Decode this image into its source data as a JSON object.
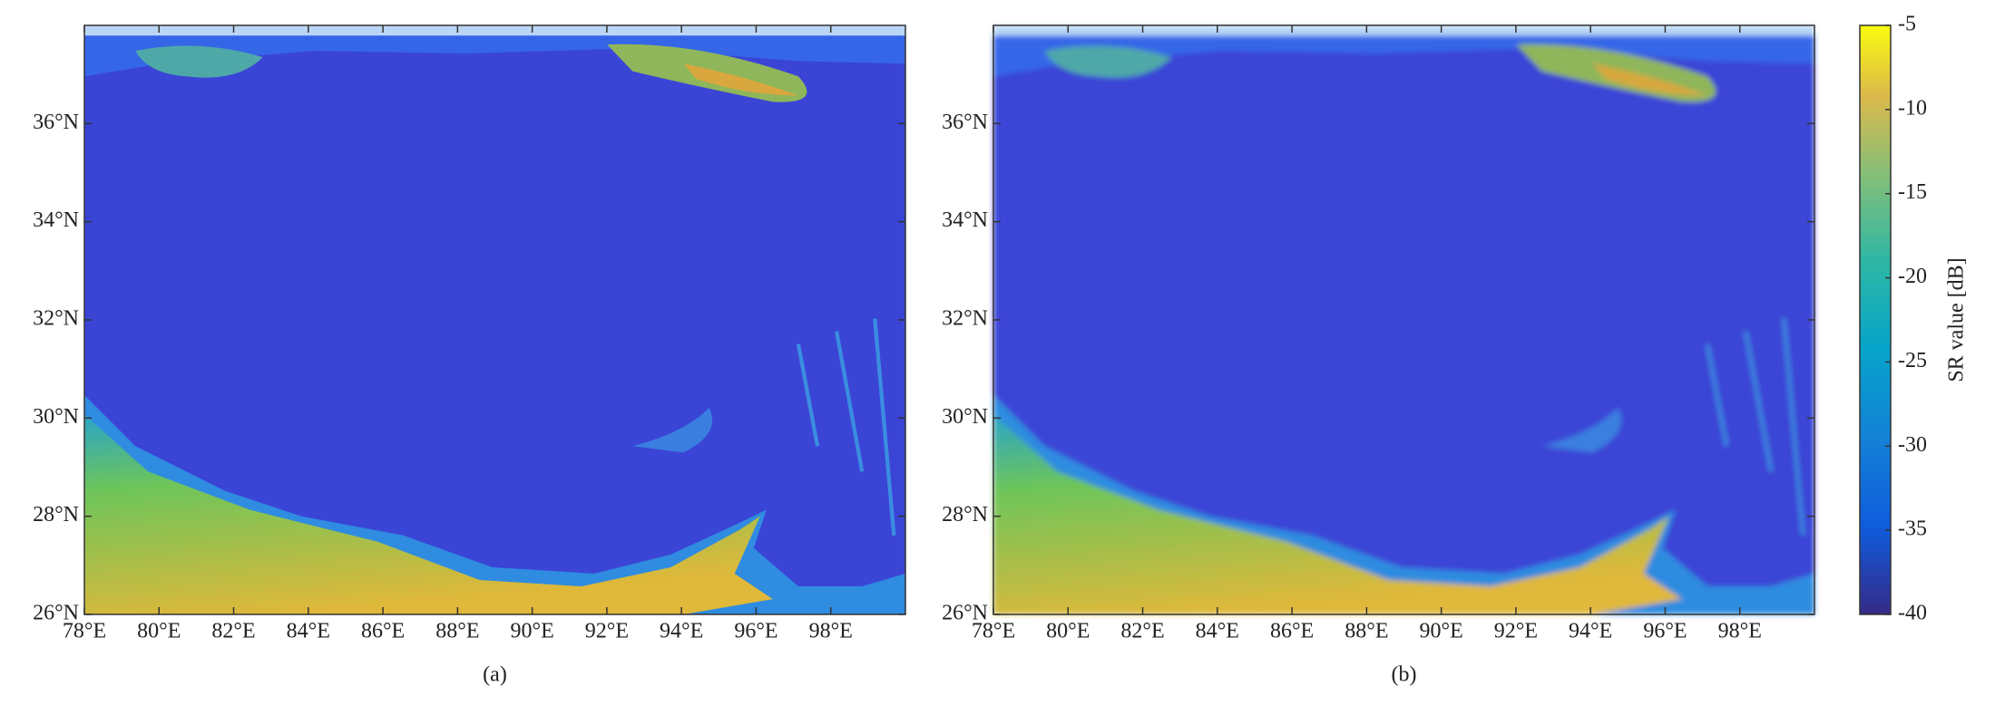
{
  "panels": [
    {
      "caption": "(a)"
    },
    {
      "caption": "(b)"
    }
  ],
  "xlim": [
    78,
    100
  ],
  "ylim": [
    26,
    38
  ],
  "xticks": [
    {
      "value": 78,
      "label": "78°E"
    },
    {
      "value": 80,
      "label": "80°E"
    },
    {
      "value": 82,
      "label": "82°E"
    },
    {
      "value": 84,
      "label": "84°E"
    },
    {
      "value": 86,
      "label": "86°E"
    },
    {
      "value": 88,
      "label": "88°E"
    },
    {
      "value": 90,
      "label": "90°E"
    },
    {
      "value": 92,
      "label": "92°E"
    },
    {
      "value": 94,
      "label": "94°E"
    },
    {
      "value": 96,
      "label": "96°E"
    },
    {
      "value": 98,
      "label": "98°E"
    }
  ],
  "yticks": [
    {
      "value": 26,
      "label": "26°N"
    },
    {
      "value": 28,
      "label": "28°N"
    },
    {
      "value": 30,
      "label": "30°N"
    },
    {
      "value": 32,
      "label": "32°N"
    },
    {
      "value": 34,
      "label": "34°N"
    },
    {
      "value": 36,
      "label": "36°N"
    }
  ],
  "colorbar": {
    "label": "SR value [dB]",
    "lim": [
      -40,
      -5
    ],
    "ticks": [
      -40,
      -35,
      -30,
      -25,
      -20,
      -15,
      -10,
      -5
    ]
  }
}
